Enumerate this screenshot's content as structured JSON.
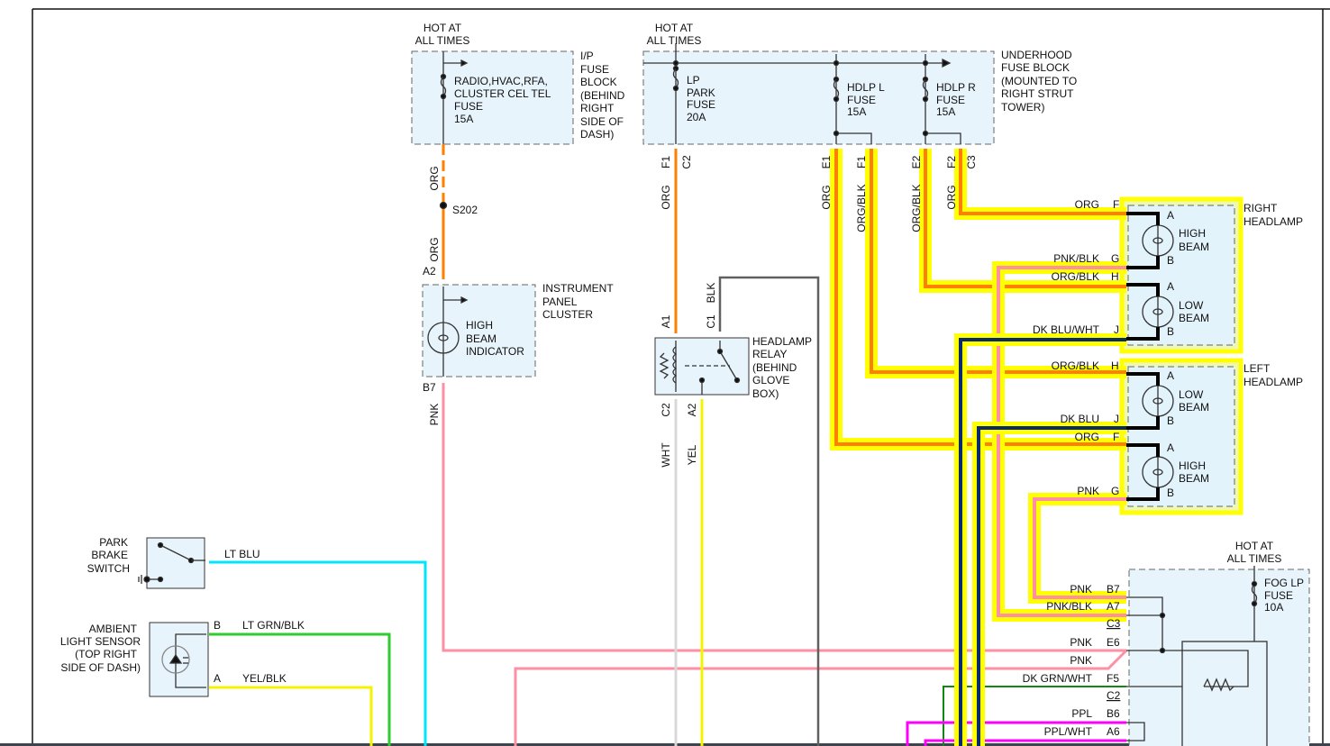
{
  "colors": {
    "highlight": "#ffff00",
    "orange": "#ff8000",
    "pink": "#ff8fa3",
    "dark_blue": "#0a2a6e",
    "light_blue": "#00e5ff",
    "green": "#2ecc2e",
    "dark_green": "#118811",
    "yellow": "#f4f400",
    "white_wire": "#d8d8d8",
    "black_wire": "#606060",
    "purple": "#ff00ff",
    "box_fill": "#e8f4fc"
  },
  "ip_fuse_block": {
    "hot": [
      "HOT AT",
      "ALL TIMES"
    ],
    "fuse": [
      "RADIO,HVAC,RFA,",
      "CLUSTER CEL TEL",
      "FUSE",
      "15A"
    ],
    "name": [
      "I/P",
      "FUSE",
      "BLOCK",
      "(BEHIND",
      "RIGHT",
      "SIDE OF",
      "DASH)"
    ],
    "wire1": "ORG",
    "splice": "S202",
    "wire2": "ORG"
  },
  "underhood_fuse_block": {
    "hot": [
      "HOT AT",
      "ALL TIMES"
    ],
    "fuses": [
      [
        "LP",
        "PARK",
        "FUSE",
        "20A"
      ],
      [
        "HDLP L",
        "FUSE",
        "15A"
      ],
      [
        "HDLP R",
        "FUSE",
        "15A"
      ]
    ],
    "name": [
      "UNDERHOOD",
      "FUSE BLOCK",
      "(MOUNTED TO",
      "RIGHT STRUT",
      "TOWER)"
    ],
    "pins": [
      "F1",
      "C2",
      "E1",
      "F1",
      "E2",
      "F2",
      "C3"
    ],
    "wires": [
      "ORG",
      "ORG",
      "ORG/BLK",
      "ORG/BLK",
      "ORG"
    ]
  },
  "instrument_panel_cluster": {
    "pin_in": "A2",
    "pin_out": "B7",
    "bulb": [
      "HIGH",
      "BEAM",
      "INDICATOR"
    ],
    "name": [
      "INSTRUMENT",
      "PANEL",
      "CLUSTER"
    ],
    "wire_out": "PNK"
  },
  "headlamp_relay": {
    "pins": [
      "A1",
      "C1",
      "C2",
      "A2"
    ],
    "wire_c1": "BLK",
    "wire_c2": "WHT",
    "wire_a2": "YEL",
    "name": [
      "HEADLAMP",
      "RELAY",
      "(BEHIND",
      "GLOVE",
      "BOX)"
    ]
  },
  "right_headlamp": {
    "name": [
      "RIGHT",
      "HEADLAMP"
    ],
    "wires": [
      {
        "color": "ORG",
        "pin": "F"
      },
      {
        "color": "PNK/BLK",
        "pin": "G"
      },
      {
        "color": "ORG/BLK",
        "pin": "H"
      },
      {
        "color": "DK BLU/WHT",
        "pin": "J"
      }
    ],
    "bulbs": [
      {
        "label": [
          "HIGH",
          "BEAM"
        ],
        "a": "A",
        "b": "B"
      },
      {
        "label": [
          "LOW",
          "BEAM"
        ],
        "a": "A",
        "b": "B"
      }
    ]
  },
  "left_headlamp": {
    "name": [
      "LEFT",
      "HEADLAMP"
    ],
    "wires": [
      {
        "color": "ORG/BLK",
        "pin": "H"
      },
      {
        "color": "DK BLU",
        "pin": "J"
      },
      {
        "color": "ORG",
        "pin": "F"
      },
      {
        "color": "PNK",
        "pin": "G"
      }
    ],
    "bulbs": [
      {
        "label": [
          "LOW",
          "BEAM"
        ],
        "a": "A",
        "b": "B"
      },
      {
        "label": [
          "HIGH",
          "BEAM"
        ],
        "a": "A",
        "b": "B"
      }
    ]
  },
  "fog_module": {
    "hot": [
      "HOT AT",
      "ALL TIMES"
    ],
    "fuse": [
      "FOG LP",
      "FUSE",
      "10A"
    ],
    "wires": [
      {
        "color": "PNK",
        "pin": "B7"
      },
      {
        "color": "PNK/BLK",
        "pin": "A7"
      },
      {
        "color": "",
        "pin": "C3"
      },
      {
        "color": "PNK",
        "pin": "E6"
      },
      {
        "color": "PNK",
        "pin": ""
      },
      {
        "color": "DK GRN/WHT",
        "pin": "F5"
      },
      {
        "color": "",
        "pin": "C2"
      },
      {
        "color": "PPL",
        "pin": "B6"
      },
      {
        "color": "PPL/WHT",
        "pin": "A6"
      }
    ]
  },
  "park_brake_switch": {
    "name": [
      "PARK",
      "BRAKE",
      "SWITCH"
    ],
    "wire": "LT BLU"
  },
  "ambient_light_sensor": {
    "name": [
      "AMBIENT",
      "LIGHT SENSOR",
      "(TOP RIGHT",
      "SIDE OF DASH)"
    ],
    "pin_b": "B",
    "wire_b": "LT GRN/BLK",
    "pin_a": "A",
    "wire_a": "YEL/BLK"
  }
}
